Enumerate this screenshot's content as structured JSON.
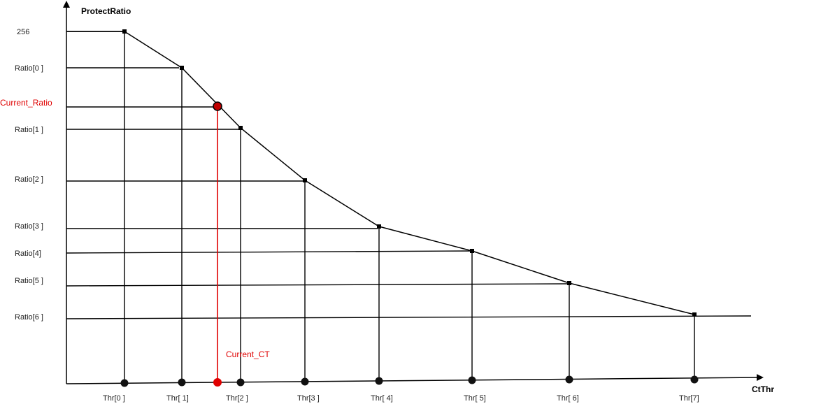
{
  "chart_data": {
    "type": "line",
    "ylabel": "ProtectRatio",
    "xlabel": "CtThr",
    "y_tick_labels": [
      "256",
      "Ratio[0  ]",
      "Ratio[1  ]",
      "Ratio[2  ]",
      "Ratio[3  ]",
      "Ratio[4]",
      "Ratio[5  ]",
      "Ratio[6  ]"
    ],
    "x_tick_labels": [
      "Thr[0 ]",
      "Thr[ 1]",
      "Thr[2  ]",
      "Thr[3  ]",
      "Thr[ 4]",
      "Thr[ 5]",
      "Thr[ 6]",
      "Thr[7]"
    ],
    "current": {
      "ratio_label": "Current_Ratio",
      "ct_label": "Current_CT"
    }
  },
  "colors": {
    "line": "#000000",
    "highlight": "#e00000",
    "highlight_dot": "#c00000"
  }
}
